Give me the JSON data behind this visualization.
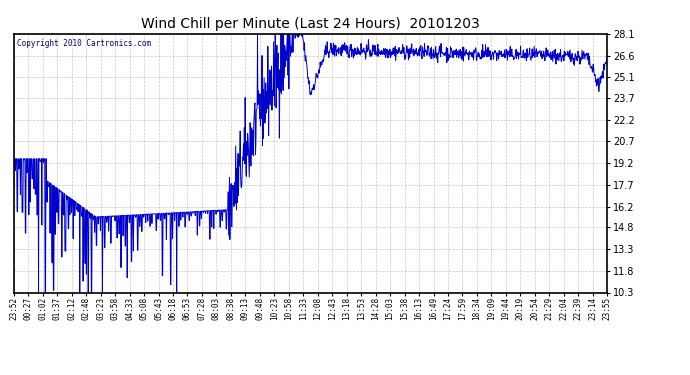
{
  "title": "Wind Chill per Minute (Last 24 Hours)  20101203",
  "copyright_text": "Copyright 2010 Cartronics.com",
  "yticks": [
    10.3,
    11.8,
    13.3,
    14.8,
    16.2,
    17.7,
    19.2,
    20.7,
    22.2,
    23.7,
    25.1,
    26.6,
    28.1
  ],
  "ymin": 10.3,
  "ymax": 28.1,
  "line_color": "#0000cc",
  "background_color": "#ffffff",
  "grid_color": "#b0b0b0",
  "title_color": "#000000",
  "copyright_color": "#000080",
  "xtick_labels": [
    "23:52",
    "00:27",
    "01:02",
    "01:37",
    "02:12",
    "02:48",
    "03:23",
    "03:58",
    "04:33",
    "05:08",
    "05:43",
    "06:18",
    "06:53",
    "07:28",
    "08:03",
    "08:38",
    "09:13",
    "09:48",
    "10:23",
    "10:58",
    "11:33",
    "12:08",
    "12:43",
    "13:18",
    "13:53",
    "14:28",
    "15:03",
    "15:38",
    "16:13",
    "16:49",
    "17:24",
    "17:59",
    "18:34",
    "19:09",
    "19:44",
    "20:19",
    "20:54",
    "21:29",
    "22:04",
    "22:39",
    "23:14",
    "23:55"
  ],
  "figwidth": 6.9,
  "figheight": 3.75,
  "dpi": 100
}
